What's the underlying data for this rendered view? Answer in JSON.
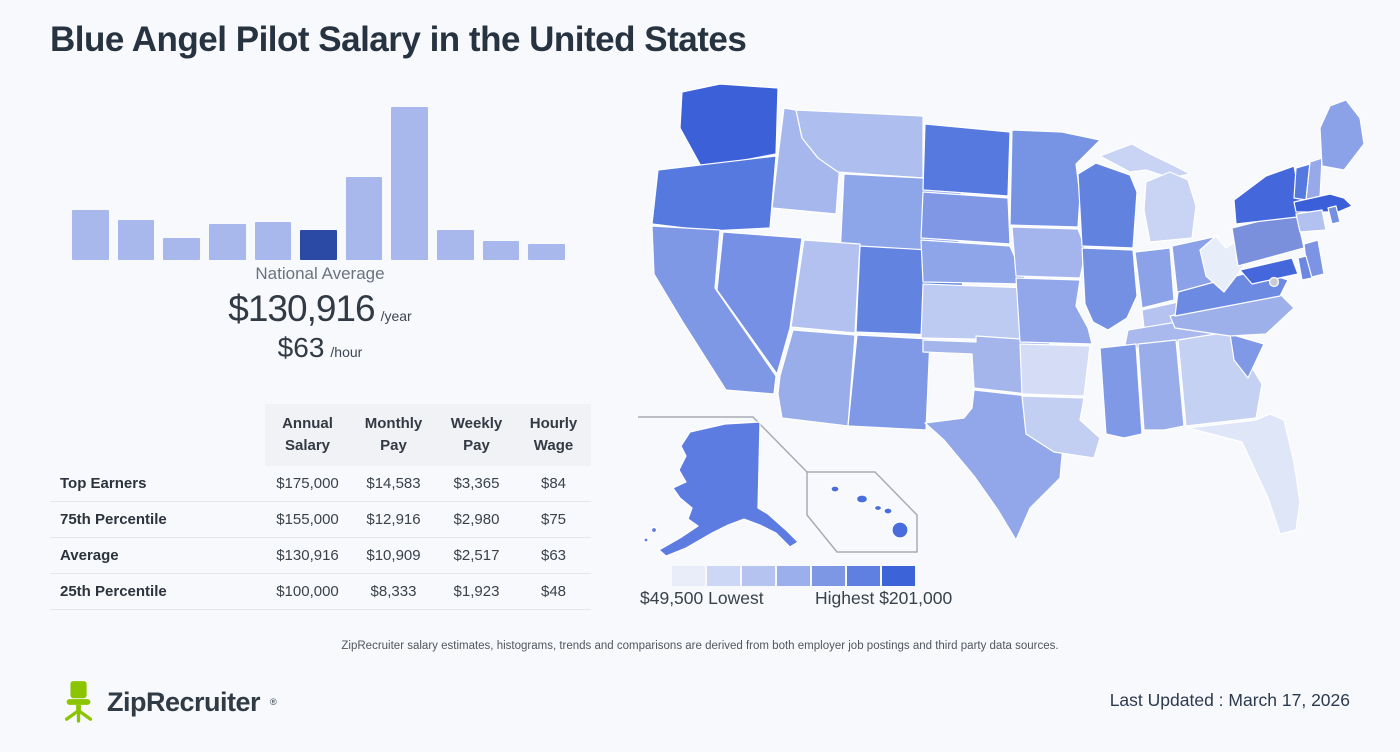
{
  "page": {
    "title": "Blue Angel Pilot Salary in the United States",
    "background_color": "#f7f9fc"
  },
  "chart_data": [
    {
      "type": "bar",
      "purpose": "salary-distribution-histogram",
      "title": "",
      "xlabel": "",
      "ylabel": "",
      "categories": [
        "bin1",
        "bin2",
        "bin3",
        "bin4",
        "bin5",
        "bin6",
        "bin7",
        "bin8",
        "bin9",
        "bin10",
        "bin11"
      ],
      "values": [
        50,
        40,
        22,
        36,
        38,
        30,
        83,
        153,
        30,
        19,
        16
      ],
      "value_units": "relative bar height (px), no axis labels shown",
      "highlight_index": 5,
      "highlight_label": "National Average",
      "bar_color": "#a8b8ec",
      "highlight_color": "#2a4aa5",
      "grid": false,
      "legend": false
    },
    {
      "type": "heatmap",
      "purpose": "choropleth-average-salary-by-state",
      "title": "",
      "range": {
        "lowest": 49500,
        "highest": 201000
      },
      "lowest_label": "$49,500 Lowest",
      "highest_label": "Highest $201,000",
      "legend_colors": [
        "#e9edf9",
        "#ccd6f5",
        "#b5c3f0",
        "#9aafeb",
        "#7e97e5",
        "#5f80e0",
        "#3d63d9"
      ],
      "state_colors": {
        "WA": "#3b60d8",
        "OR": "#5579de",
        "CA": "#7f98e5",
        "NV": "#7590e4",
        "ID": "#a6b7ed",
        "MT": "#aebeee",
        "WY": "#8da5e9",
        "UT": "#b2c1ef",
        "CO": "#6284e0",
        "AZ": "#98ade9",
        "NM": "#8099e6",
        "ND": "#5579de",
        "SD": "#7f97e5",
        "NE": "#8ea5e9",
        "KS": "#bdcaf1",
        "OK": "#a3b5eb",
        "TX": "#91a7e9",
        "MN": "#7793e4",
        "IA": "#a3b5ec",
        "MO": "#92a7e9",
        "AR": "#d4dcf6",
        "LA": "#c2cef2",
        "WI": "#6282e0",
        "IL": "#7490e3",
        "MI": "#c9d4f4",
        "IN": "#8ba1e8",
        "OH": "#8ba1e8",
        "KY": "#b6c3f0",
        "TN": "#aab9ed",
        "MS": "#8099e6",
        "AL": "#98ade9",
        "GA": "#c5d1f3",
        "FL": "#dfe6f8",
        "SC": "#8099e6",
        "NC": "#9db0ea",
        "VA": "#6c8ae2",
        "WV": "#e8edfa",
        "MD": "#4468db",
        "DE": "#6c88e0",
        "NJ": "#7d94e4",
        "PA": "#7b90dc",
        "NY": "#4468db",
        "CT": "#b2c1ef",
        "RI": "#7490e3",
        "MA": "#3b5fd8",
        "VT": "#5579de",
        "NH": "#97a9e8",
        "ME": "#8ca2e8",
        "AK": "#5d7ce2",
        "HI": "#4a6ddd",
        "DC": "#c9ccd2"
      }
    }
  ],
  "national_average": {
    "label": "National Average",
    "annual_value": "$130,916",
    "annual_unit": "/year",
    "hourly_value": "$63",
    "hourly_unit": "/hour"
  },
  "salary_table": {
    "columns": [
      "Annual Salary",
      "Monthly Pay",
      "Weekly Pay",
      "Hourly Wage"
    ],
    "rows": [
      {
        "label": "Top Earners",
        "values": [
          "$175,000",
          "$14,583",
          "$3,365",
          "$84"
        ]
      },
      {
        "label": "75th Percentile",
        "values": [
          "$155,000",
          "$12,916",
          "$2,980",
          "$75"
        ]
      },
      {
        "label": "Average",
        "values": [
          "$130,916",
          "$10,909",
          "$2,517",
          "$63"
        ]
      },
      {
        "label": "25th Percentile",
        "values": [
          "$100,000",
          "$8,333",
          "$1,923",
          "$48"
        ]
      }
    ]
  },
  "footer": {
    "disclaimer": "ZipRecruiter salary estimates, histograms, trends and comparisons are derived from both employer job postings and third party data sources.",
    "logo_text": "ZipRecruiter",
    "logo_reg": "®",
    "logo_green": "#8bc400",
    "last_updated": "Last Updated : March 17, 2026"
  }
}
